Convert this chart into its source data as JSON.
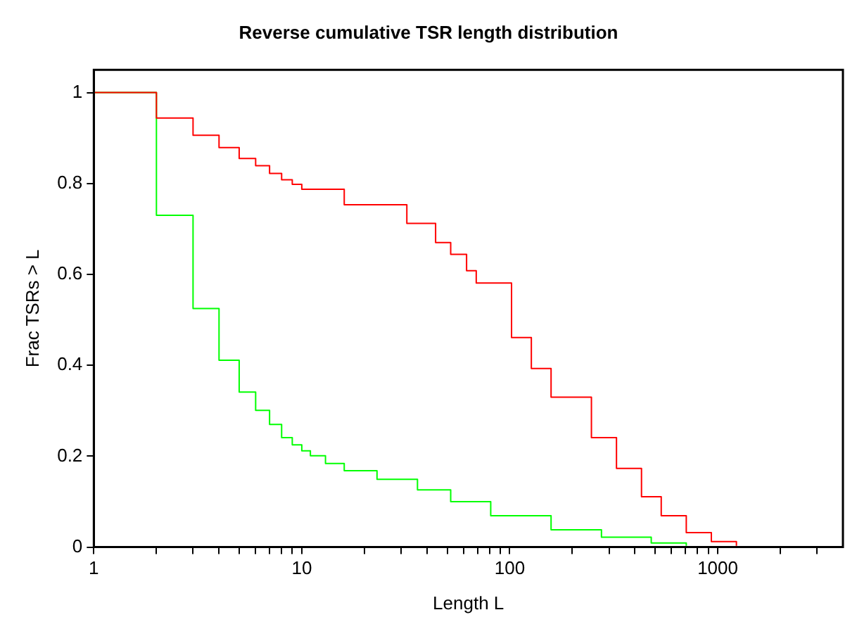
{
  "chart_data": {
    "type": "step",
    "title": "Reverse cumulative TSR length distribution",
    "xlabel": "Length L",
    "ylabel": "Frac TSRs > L",
    "log": "x",
    "xlim": [
      1,
      4000
    ],
    "xticks": [
      1,
      {
        "value": 2,
        "label": null
      },
      {
        "value": 3,
        "label": null
      },
      {
        "value": 4,
        "label": null
      },
      {
        "value": 5,
        "label": null
      },
      {
        "value": 6,
        "label": null
      },
      {
        "value": 7,
        "label": null
      },
      {
        "value": 8,
        "label": null
      },
      {
        "value": 9,
        "label": null
      },
      10,
      {
        "value": 20,
        "label": null
      },
      {
        "value": 30,
        "label": null
      },
      {
        "value": 40,
        "label": null
      },
      {
        "value": 50,
        "label": null
      },
      {
        "value": 60,
        "label": null
      },
      {
        "value": 70,
        "label": null
      },
      {
        "value": 80,
        "label": null
      },
      {
        "value": 90,
        "label": null
      },
      100,
      {
        "value": 200,
        "label": null
      },
      {
        "value": 300,
        "label": null
      },
      {
        "value": 400,
        "label": null
      },
      {
        "value": 500,
        "label": null
      },
      {
        "value": 600,
        "label": null
      },
      {
        "value": 700,
        "label": null
      },
      {
        "value": 800,
        "label": null
      },
      {
        "value": 900,
        "label": null
      },
      1000,
      {
        "value": 2000,
        "label": null
      },
      {
        "value": 3000,
        "label": null
      }
    ],
    "ylim": [
      0,
      1.05
    ],
    "yticks": [
      0,
      0.2,
      0.4,
      0.6,
      0.8,
      1
    ],
    "grid": false,
    "legend": false,
    "series": [
      {
        "color": "#ff0000",
        "x": [
          1,
          2,
          3,
          4,
          5,
          6,
          7,
          8,
          9,
          10,
          16,
          32,
          44,
          52,
          62,
          69,
          102,
          127,
          158,
          247,
          326,
          430,
          535,
          706,
          932,
          1230
        ],
        "values": [
          1,
          0.944,
          0.906,
          0.879,
          0.855,
          0.839,
          0.822,
          0.808,
          0.798,
          0.787,
          0.753,
          0.712,
          0.67,
          0.644,
          0.608,
          0.581,
          0.461,
          0.393,
          0.33,
          0.241,
          0.173,
          0.111,
          0.069,
          0.032,
          0.012,
          0.003
        ]
      },
      {
        "color": "#00ff00",
        "x": [
          1,
          2,
          3,
          4,
          5,
          6,
          7,
          8,
          9,
          10,
          11,
          13,
          16,
          23,
          36,
          52,
          81,
          158,
          276,
          479,
          706
        ],
        "values": [
          1,
          0.73,
          0.525,
          0.411,
          0.341,
          0.301,
          0.27,
          0.241,
          0.225,
          0.212,
          0.201,
          0.184,
          0.168,
          0.149,
          0.126,
          0.1,
          0.069,
          0.038,
          0.022,
          0.009,
          0.003
        ]
      }
    ]
  }
}
